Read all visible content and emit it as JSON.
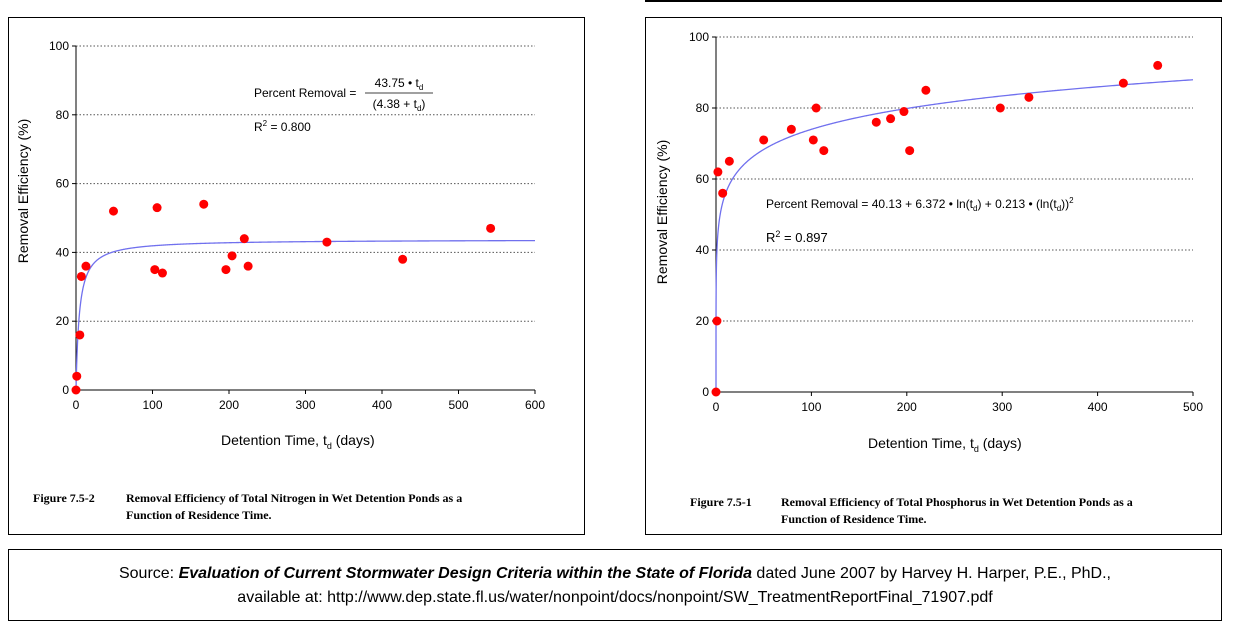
{
  "chart_data": [
    {
      "type": "scatter",
      "xlabel": "Detention Time, t",
      "xlabel_sub": "d",
      "xlabel_suffix": " (days)",
      "ylabel": "Removal Efficiency (%)",
      "xlim": [
        0,
        600
      ],
      "ylim": [
        0,
        100
      ],
      "xticks": [
        0,
        100,
        200,
        300,
        400,
        500,
        600
      ],
      "yticks": [
        0,
        20,
        40,
        60,
        80,
        100
      ],
      "grid": "horizontal dotted",
      "series": [
        {
          "kind": "points",
          "color": "#ff0000",
          "points": [
            [
              0,
              0
            ],
            [
              1,
              4
            ],
            [
              5,
              16
            ],
            [
              7,
              33
            ],
            [
              13,
              36
            ],
            [
              49,
              52
            ],
            [
              103,
              35
            ],
            [
              106,
              53
            ],
            [
              113,
              34
            ],
            [
              167,
              54
            ],
            [
              196,
              35
            ],
            [
              204,
              39
            ],
            [
              220,
              44
            ],
            [
              225,
              36
            ],
            [
              328,
              43
            ],
            [
              427,
              38
            ],
            [
              542,
              47
            ]
          ]
        },
        {
          "kind": "fit-curve",
          "color": "#7070ee",
          "a": 43.75,
          "b": 4.38
        }
      ],
      "equation": {
        "lhs": "Percent Removal =",
        "numerator": "43.75 • t",
        "denominator_open": "(4.38 + t",
        "sub": "d",
        "denominator_close": ")",
        "r2_prefix": "R",
        "r2_sup": "2",
        "r2_value": " = 0.800"
      },
      "caption": {
        "number": "Figure 7.5-2",
        "line1": "Removal Efficiency of Total Nitrogen in Wet Detention Ponds as a",
        "line2": "Function of Residence Time."
      }
    },
    {
      "type": "scatter",
      "xlabel": "Detention Time, t",
      "xlabel_sub": "d",
      "xlabel_suffix": " (days)",
      "ylabel": "Removal Efficiency (%)",
      "xlim": [
        0,
        500
      ],
      "ylim": [
        0,
        100
      ],
      "xticks": [
        0,
        100,
        200,
        300,
        400,
        500
      ],
      "yticks": [
        0,
        20,
        40,
        60,
        80,
        100
      ],
      "grid": "horizontal dotted",
      "series": [
        {
          "kind": "points",
          "color": "#ff0000",
          "points": [
            [
              0,
              0
            ],
            [
              1,
              20
            ],
            [
              2,
              62
            ],
            [
              7,
              56
            ],
            [
              14,
              65
            ],
            [
              50,
              71
            ],
            [
              79,
              74
            ],
            [
              102,
              71
            ],
            [
              105,
              80
            ],
            [
              113,
              68
            ],
            [
              168,
              76
            ],
            [
              183,
              77
            ],
            [
              197,
              79
            ],
            [
              203,
              68
            ],
            [
              220,
              85
            ],
            [
              298,
              80
            ],
            [
              328,
              83
            ],
            [
              427,
              87
            ],
            [
              463,
              92
            ]
          ]
        },
        {
          "kind": "fit-curve",
          "color": "#7070ee",
          "c0": 40.13,
          "c1": 6.372,
          "c2": 0.213
        }
      ],
      "equation": {
        "text": "Percent Removal = 40.13 + 6.372 • ln(t",
        "sub1": "d",
        "mid": ") + 0.213 • (ln(t",
        "sub2": "d",
        "end": "))",
        "sup": "2",
        "r2_prefix": "R",
        "r2_sup": "2",
        "r2_value": " = 0.897"
      },
      "caption": {
        "number": "Figure 7.5-1",
        "line1": "Removal Efficiency of Total Phosphorus in Wet Detention Ponds as a",
        "line2": "Function of Residence Time."
      }
    }
  ],
  "source": {
    "prefix": "Source: ",
    "title": "Evaluation of Current Stormwater Design Criteria within the State of Florida",
    "suffix": " dated June 2007 by Harvey H. Harper, P.E., PhD.,",
    "line2": "available at: http://www.dep.state.fl.us/water/nonpoint/docs/nonpoint/SW_TreatmentReportFinal_71907.pdf"
  }
}
